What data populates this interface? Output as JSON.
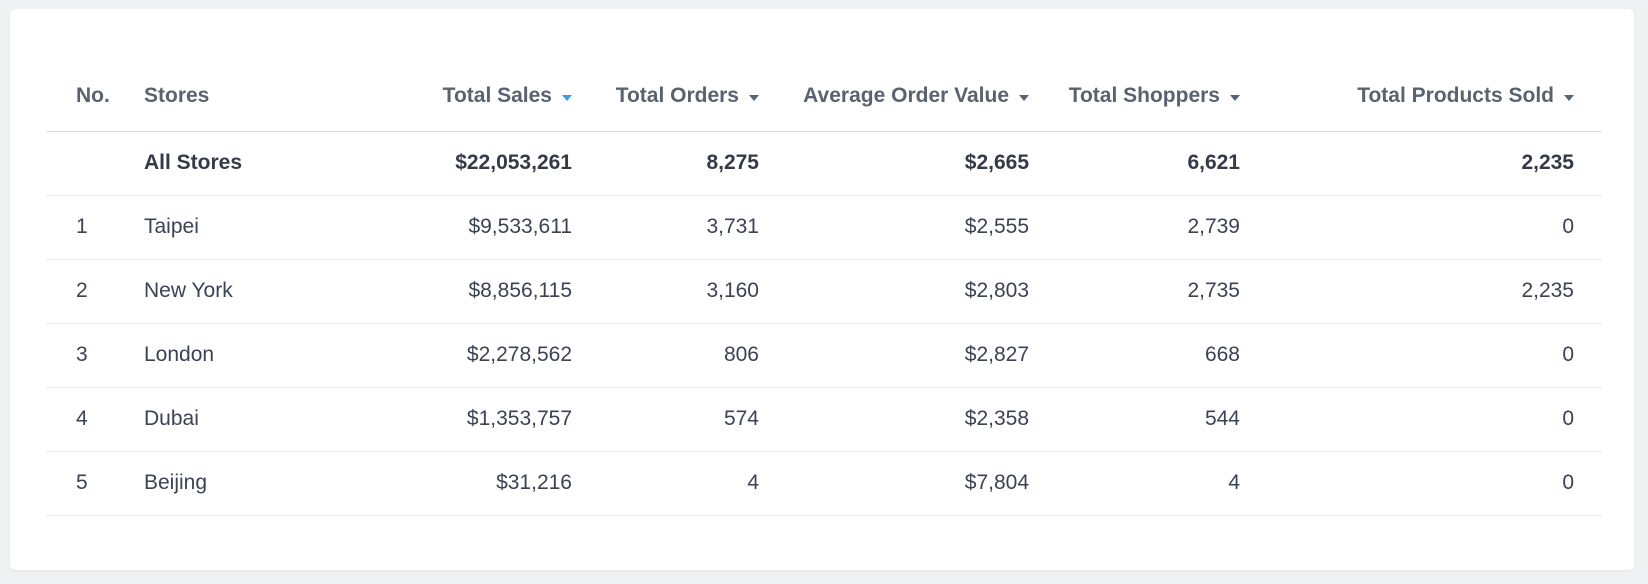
{
  "table": {
    "headers": {
      "no": "No.",
      "stores": "Stores",
      "total_sales": "Total Sales",
      "total_orders": "Total Orders",
      "average_order_value": "Average Order Value",
      "total_shoppers": "Total Shoppers",
      "total_products_sold": "Total Products Sold"
    },
    "sort": {
      "column": "Total Sales",
      "active_caret_color": "#3d9be9",
      "caret_color": "#5a6270"
    },
    "summary": {
      "no": "",
      "store": "All Stores",
      "total_sales": "$22,053,261",
      "total_orders": "8,275",
      "average_order_value": "$2,665",
      "total_shoppers": "6,621",
      "total_products_sold": "2,235"
    },
    "rows": [
      {
        "no": "1",
        "store": "Taipei",
        "total_sales": "$9,533,611",
        "total_orders": "3,731",
        "average_order_value": "$2,555",
        "total_shoppers": "2,739",
        "total_products_sold": "0"
      },
      {
        "no": "2",
        "store": "New York",
        "total_sales": "$8,856,115",
        "total_orders": "3,160",
        "average_order_value": "$2,803",
        "total_shoppers": "2,735",
        "total_products_sold": "2,235"
      },
      {
        "no": "3",
        "store": "London",
        "total_sales": "$2,278,562",
        "total_orders": "806",
        "average_order_value": "$2,827",
        "total_shoppers": "668",
        "total_products_sold": "0"
      },
      {
        "no": "4",
        "store": "Dubai",
        "total_sales": "$1,353,757",
        "total_orders": "574",
        "average_order_value": "$2,358",
        "total_shoppers": "544",
        "total_products_sold": "0"
      },
      {
        "no": "5",
        "store": "Beijing",
        "total_sales": "$31,216",
        "total_orders": "4",
        "average_order_value": "$7,804",
        "total_shoppers": "4",
        "total_products_sold": "0"
      }
    ]
  }
}
